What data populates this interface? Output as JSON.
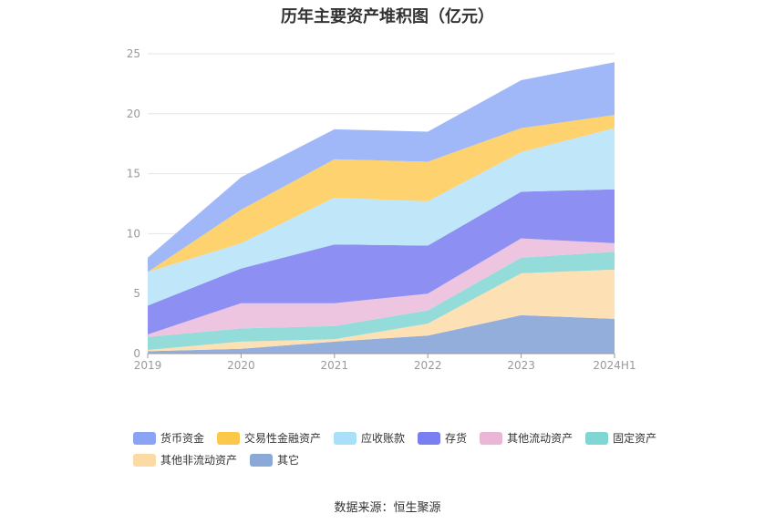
{
  "title": "历年主要资产堆积图（亿元）",
  "source": "数据来源：恒生聚源",
  "chart_data": {
    "type": "area",
    "stacked": true,
    "categories": [
      "2019",
      "2020",
      "2021",
      "2022",
      "2023",
      "2024H1"
    ],
    "ylim": [
      0,
      25
    ],
    "yticks": [
      0,
      5,
      10,
      15,
      20,
      25
    ],
    "grid": true,
    "legend_position": "bottom",
    "series": [
      {
        "name": "其它",
        "color": "#94aedb",
        "values": [
          0.2,
          0.4,
          1.0,
          1.5,
          3.2,
          2.9
        ]
      },
      {
        "name": "其他非流动资产",
        "color": "#fde1b4",
        "values": [
          0.1,
          0.6,
          0.2,
          1.0,
          3.5,
          4.1
        ]
      },
      {
        "name": "固定资产",
        "color": "#94dcd9",
        "values": [
          1.1,
          1.1,
          1.1,
          1.1,
          1.3,
          1.5
        ]
      },
      {
        "name": "其他流动资产",
        "color": "#edc5e0",
        "values": [
          0.2,
          2.1,
          1.9,
          1.4,
          1.6,
          0.7
        ]
      },
      {
        "name": "存货",
        "color": "#8d90f2",
        "values": [
          2.4,
          2.9,
          4.9,
          4.0,
          3.9,
          4.5
        ]
      },
      {
        "name": "应收账款",
        "color": "#bfe6f9",
        "values": [
          2.8,
          2.1,
          3.9,
          3.7,
          3.3,
          5.1
        ]
      },
      {
        "name": "交易性金融资产",
        "color": "#fdd26f",
        "values": [
          0.0,
          2.8,
          3.2,
          3.3,
          2.0,
          1.1
        ]
      },
      {
        "name": "货币资金",
        "color": "#a1b8f8",
        "values": [
          1.2,
          2.7,
          2.5,
          2.5,
          4.0,
          4.4
        ]
      }
    ]
  },
  "legend": [
    {
      "name": "货币资金",
      "color": "#8aa3f4"
    },
    {
      "name": "交易性金融资产",
      "color": "#fcc849"
    },
    {
      "name": "应收账款",
      "color": "#a9dff7"
    },
    {
      "name": "存货",
      "color": "#7a7ef0"
    },
    {
      "name": "其他流动资产",
      "color": "#e9b6d6"
    },
    {
      "name": "固定资产",
      "color": "#7fd6d3"
    },
    {
      "name": "其他非流动资产",
      "color": "#fcdaa4"
    },
    {
      "name": "其它",
      "color": "#8aa9d9"
    }
  ]
}
